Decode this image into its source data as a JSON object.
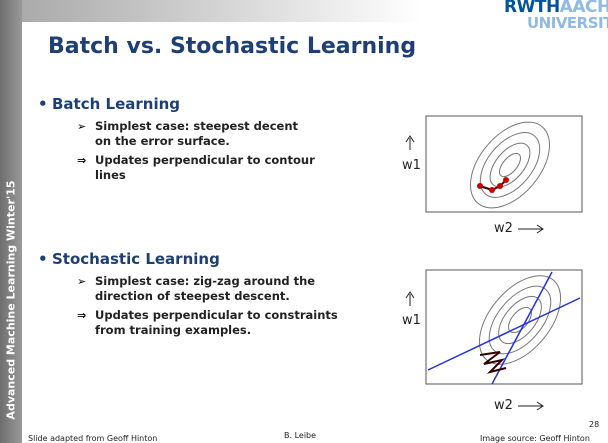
{
  "sidebar": "Advanced Machine Learning Winter'15",
  "logo": {
    "rwth": "RWTH",
    "aachen": "AACHEN",
    "university": "UNIVERSITY"
  },
  "title": "Batch vs. Stochastic Learning",
  "sections": [
    {
      "bullet": "•",
      "heading": "Batch Learning",
      "items": [
        {
          "marker": "➢",
          "lines": [
            "Simplest case: steepest decent",
            "on the error surface."
          ]
        },
        {
          "marker": "⇒",
          "lines": [
            "Updates perpendicular to contour",
            "lines"
          ]
        }
      ]
    },
    {
      "bullet": "•",
      "heading": "Stochastic Learning",
      "items": [
        {
          "marker": "➢",
          "lines": [
            "Simplest case: zig-zag around the",
            "direction of steepest descent."
          ]
        },
        {
          "marker": "⇒",
          "lines": [
            "Updates perpendicular to constraints",
            "from training examples."
          ]
        }
      ]
    }
  ],
  "figures": [
    {
      "w1": "w1",
      "w2": "w2"
    },
    {
      "w1": "w1",
      "w2": "w2"
    }
  ],
  "footer": {
    "left": "Slide adapted from Geoff Hinton",
    "center": "B. Leibe",
    "right": "Image source: Geoff Hinton",
    "page": "28"
  }
}
